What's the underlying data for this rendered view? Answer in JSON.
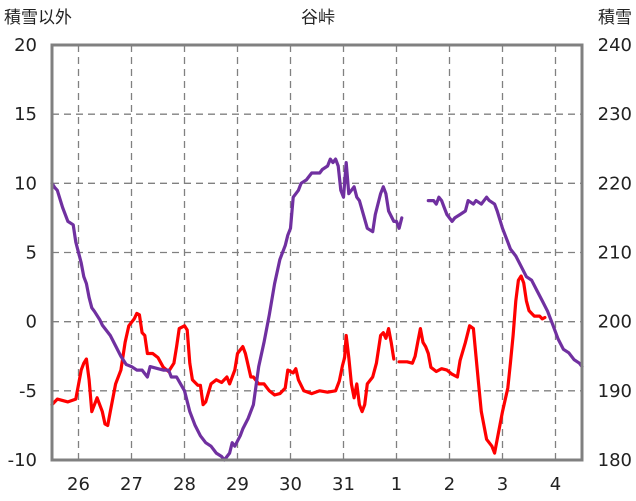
{
  "chart_data": {
    "type": "line",
    "title": "谷峠",
    "left_axis": {
      "label": "積雪以外",
      "ylim": [
        -10,
        20
      ],
      "ticks": [
        "20",
        "15",
        "10",
        "5",
        "0",
        "-5",
        "-10"
      ]
    },
    "right_axis": {
      "label": "積雪",
      "ylim": [
        180,
        240
      ],
      "ticks": [
        "240",
        "230",
        "220",
        "210",
        "200",
        "190",
        "180"
      ]
    },
    "x_ticks": [
      "26",
      "27",
      "28",
      "29",
      "30",
      "31",
      "1",
      "2",
      "3",
      "4"
    ],
    "xlim": [
      25.5,
      35.5
    ],
    "grid": true,
    "colors": {
      "temperature": "#ff0000",
      "snow_depth": "#7030a0",
      "frame": "#808080"
    },
    "series": [
      {
        "axis": "left",
        "color": "#ff0000",
        "segments": [
          [
            [
              25.5,
              -6.0
            ],
            [
              25.6,
              -5.6
            ],
            [
              25.8,
              -5.8
            ],
            [
              25.95,
              -5.6
            ],
            [
              26.05,
              -3.5
            ],
            [
              26.1,
              -3.0
            ],
            [
              26.15,
              -2.7
            ],
            [
              26.2,
              -4.2
            ],
            [
              26.25,
              -6.5
            ],
            [
              26.35,
              -5.5
            ],
            [
              26.45,
              -6.5
            ],
            [
              26.5,
              -7.4
            ],
            [
              26.55,
              -7.5
            ],
            [
              26.6,
              -6.5
            ],
            [
              26.7,
              -4.5
            ],
            [
              26.8,
              -3.5
            ],
            [
              26.88,
              -1.5
            ],
            [
              26.95,
              -0.3
            ],
            [
              27.05,
              0.2
            ],
            [
              27.1,
              0.6
            ],
            [
              27.15,
              0.5
            ],
            [
              27.2,
              -0.8
            ],
            [
              27.25,
              -1.0
            ],
            [
              27.3,
              -2.3
            ],
            [
              27.4,
              -2.3
            ],
            [
              27.5,
              -2.6
            ],
            [
              27.6,
              -3.3
            ],
            [
              27.7,
              -3.6
            ],
            [
              27.8,
              -3.0
            ],
            [
              27.85,
              -1.8
            ],
            [
              27.9,
              -0.5
            ],
            [
              28.0,
              -0.3
            ],
            [
              28.05,
              -0.6
            ],
            [
              28.1,
              -3.0
            ],
            [
              28.15,
              -4.2
            ],
            [
              28.25,
              -4.6
            ],
            [
              28.3,
              -4.6
            ],
            [
              28.35,
              -6.0
            ],
            [
              28.4,
              -5.8
            ],
            [
              28.5,
              -4.5
            ],
            [
              28.6,
              -4.2
            ],
            [
              28.7,
              -4.4
            ],
            [
              28.8,
              -4.0
            ],
            [
              28.85,
              -4.5
            ],
            [
              28.95,
              -3.5
            ],
            [
              29.0,
              -2.3
            ],
            [
              29.1,
              -1.8
            ],
            [
              29.15,
              -2.3
            ],
            [
              29.25,
              -4.0
            ],
            [
              29.3,
              -4.0
            ],
            [
              29.4,
              -4.5
            ],
            [
              29.5,
              -4.5
            ],
            [
              29.6,
              -5.0
            ],
            [
              29.7,
              -5.3
            ],
            [
              29.8,
              -5.2
            ],
            [
              29.9,
              -4.8
            ],
            [
              29.95,
              -3.5
            ],
            [
              30.05,
              -3.7
            ],
            [
              30.1,
              -3.4
            ],
            [
              30.15,
              -4.2
            ],
            [
              30.25,
              -5.0
            ],
            [
              30.4,
              -5.2
            ],
            [
              30.55,
              -5.0
            ],
            [
              30.7,
              -5.1
            ],
            [
              30.85,
              -5.0
            ],
            [
              30.92,
              -4.3
            ],
            [
              30.98,
              -3.2
            ],
            [
              31.02,
              -2.6
            ],
            [
              31.05,
              -1.0
            ],
            [
              31.1,
              -2.6
            ],
            [
              31.15,
              -4.5
            ],
            [
              31.2,
              -5.5
            ],
            [
              31.25,
              -4.5
            ],
            [
              31.3,
              -6.0
            ],
            [
              31.35,
              -6.5
            ],
            [
              31.4,
              -6.0
            ],
            [
              31.45,
              -4.5
            ],
            [
              31.55,
              -4.0
            ],
            [
              31.62,
              -3.0
            ],
            [
              31.7,
              -1.0
            ],
            [
              31.75,
              -0.8
            ],
            [
              31.8,
              -1.2
            ],
            [
              31.85,
              -0.5
            ],
            [
              31.9,
              -1.5
            ],
            [
              31.95,
              -2.7
            ]
          ],
          [
            [
              32.05,
              -2.9
            ],
            [
              32.2,
              -2.9
            ],
            [
              32.3,
              -3.0
            ],
            [
              32.35,
              -2.5
            ],
            [
              32.4,
              -1.5
            ],
            [
              32.45,
              -0.5
            ],
            [
              32.5,
              -1.5
            ],
            [
              32.55,
              -1.8
            ],
            [
              32.6,
              -2.3
            ],
            [
              32.65,
              -3.3
            ],
            [
              32.75,
              -3.6
            ],
            [
              32.85,
              -3.4
            ],
            [
              32.95,
              -3.5
            ],
            [
              33.05,
              -3.8
            ],
            [
              33.15,
              -4.0
            ],
            [
              33.2,
              -2.8
            ],
            [
              33.3,
              -1.5
            ],
            [
              33.38,
              -0.3
            ],
            [
              33.45,
              -0.5
            ],
            [
              33.5,
              -2.5
            ],
            [
              33.55,
              -4.5
            ],
            [
              33.6,
              -6.5
            ],
            [
              33.7,
              -8.5
            ],
            [
              33.8,
              -9.0
            ],
            [
              33.85,
              -9.5
            ],
            [
              33.9,
              -8.5
            ],
            [
              34.0,
              -6.5
            ],
            [
              34.1,
              -4.8
            ],
            [
              34.15,
              -3.0
            ],
            [
              34.2,
              -1.0
            ],
            [
              34.25,
              1.5
            ],
            [
              34.3,
              3.0
            ],
            [
              34.35,
              3.3
            ],
            [
              34.4,
              2.8
            ],
            [
              34.45,
              1.5
            ],
            [
              34.5,
              0.8
            ],
            [
              34.55,
              0.6
            ],
            [
              34.6,
              0.4
            ],
            [
              34.7,
              0.4
            ],
            [
              34.75,
              0.2
            ],
            [
              34.8,
              0.3
            ]
          ]
        ]
      },
      {
        "axis": "right",
        "color": "#7030a0",
        "segments": [
          [
            [
              25.5,
              220.0
            ],
            [
              25.55,
              219.4
            ],
            [
              25.6,
              219.0
            ],
            [
              25.7,
              216.5
            ],
            [
              25.8,
              214.5
            ],
            [
              25.9,
              214.0
            ],
            [
              25.95,
              211.5
            ],
            [
              26.05,
              208.5
            ],
            [
              26.1,
              206.5
            ],
            [
              26.15,
              205.5
            ],
            [
              26.2,
              203.5
            ],
            [
              26.25,
              202.0
            ],
            [
              26.3,
              201.5
            ],
            [
              26.4,
              200.3
            ],
            [
              26.45,
              199.5
            ],
            [
              26.5,
              199.0
            ],
            [
              26.6,
              198.0
            ],
            [
              26.7,
              196.5
            ],
            [
              26.8,
              195.0
            ],
            [
              26.9,
              193.8
            ],
            [
              27.0,
              193.5
            ],
            [
              27.1,
              193.0
            ],
            [
              27.2,
              193.0
            ],
            [
              27.3,
              192.0
            ],
            [
              27.35,
              193.5
            ],
            [
              27.5,
              193.2
            ],
            [
              27.6,
              193.0
            ],
            [
              27.7,
              193.0
            ],
            [
              27.75,
              192.0
            ],
            [
              27.85,
              192.0
            ],
            [
              28.0,
              190.0
            ],
            [
              28.1,
              187.0
            ],
            [
              28.2,
              185.0
            ],
            [
              28.3,
              183.5
            ],
            [
              28.4,
              182.5
            ],
            [
              28.5,
              182.0
            ],
            [
              28.6,
              181.0
            ],
            [
              28.7,
              180.5
            ],
            [
              28.75,
              180.0
            ],
            [
              28.85,
              181.0
            ],
            [
              28.9,
              182.5
            ],
            [
              28.95,
              182.0
            ],
            [
              29.05,
              183.5
            ],
            [
              29.1,
              184.5
            ],
            [
              29.2,
              186.0
            ],
            [
              29.3,
              188.0
            ],
            [
              29.4,
              193.5
            ],
            [
              29.5,
              197.0
            ],
            [
              29.6,
              201.0
            ],
            [
              29.7,
              205.5
            ],
            [
              29.8,
              209.0
            ],
            [
              29.9,
              211.0
            ],
            [
              29.95,
              212.5
            ],
            [
              30.0,
              213.5
            ],
            [
              30.05,
              218.0
            ],
            [
              30.15,
              219.0
            ],
            [
              30.2,
              220.0
            ],
            [
              30.3,
              220.5
            ],
            [
              30.4,
              221.5
            ],
            [
              30.55,
              221.5
            ],
            [
              30.6,
              222.0
            ],
            [
              30.7,
              222.5
            ],
            [
              30.75,
              223.5
            ],
            [
              30.8,
              223.0
            ],
            [
              30.85,
              223.5
            ],
            [
              30.9,
              222.5
            ],
            [
              30.95,
              219.0
            ],
            [
              31.0,
              218.0
            ],
            [
              31.05,
              223.0
            ],
            [
              31.1,
              218.5
            ],
            [
              31.2,
              219.5
            ],
            [
              31.25,
              218.0
            ],
            [
              31.3,
              217.5
            ],
            [
              31.45,
              213.5
            ],
            [
              31.55,
              213.0
            ],
            [
              31.6,
              215.5
            ],
            [
              31.7,
              218.5
            ],
            [
              31.75,
              219.5
            ],
            [
              31.8,
              218.5
            ],
            [
              31.85,
              216.0
            ],
            [
              31.95,
              214.5
            ],
            [
              32.0,
              214.5
            ],
            [
              32.05,
              213.5
            ],
            [
              32.1,
              215.0
            ]
          ],
          [
            [
              32.6,
              217.5
            ],
            [
              32.7,
              217.5
            ],
            [
              32.75,
              217.0
            ],
            [
              32.8,
              218.0
            ],
            [
              32.85,
              217.5
            ],
            [
              32.9,
              216.5
            ],
            [
              32.95,
              215.5
            ],
            [
              33.05,
              214.5
            ],
            [
              33.1,
              215.0
            ],
            [
              33.2,
              215.5
            ],
            [
              33.3,
              216.0
            ],
            [
              33.35,
              217.5
            ],
            [
              33.45,
              217.0
            ],
            [
              33.5,
              217.5
            ],
            [
              33.6,
              217.0
            ],
            [
              33.7,
              218.0
            ],
            [
              33.75,
              217.5
            ],
            [
              33.85,
              217.0
            ],
            [
              33.9,
              216.0
            ],
            [
              34.0,
              213.5
            ],
            [
              34.1,
              211.5
            ],
            [
              34.15,
              210.5
            ],
            [
              34.25,
              209.5
            ],
            [
              34.35,
              208.0
            ],
            [
              34.45,
              206.5
            ],
            [
              34.55,
              206.0
            ],
            [
              34.65,
              204.5
            ],
            [
              34.75,
              203.0
            ],
            [
              34.85,
              201.5
            ],
            [
              34.95,
              199.5
            ],
            [
              35.05,
              197.5
            ],
            [
              35.15,
              196.0
            ],
            [
              35.25,
              195.5
            ],
            [
              35.35,
              194.5
            ],
            [
              35.45,
              194.0
            ],
            [
              35.5,
              193.5
            ]
          ]
        ]
      }
    ]
  }
}
